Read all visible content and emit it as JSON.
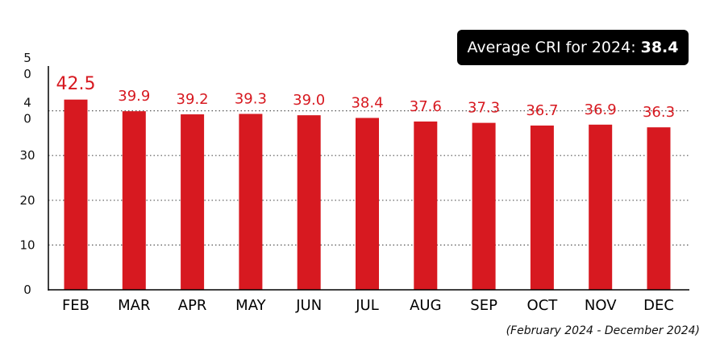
{
  "chart_data": {
    "type": "bar",
    "categories": [
      "FEB",
      "MAR",
      "APR",
      "MAY",
      "JUN",
      "JUL",
      "AUG",
      "SEP",
      "OCT",
      "NOV",
      "DEC"
    ],
    "values": [
      42.5,
      39.9,
      39.2,
      39.3,
      39.0,
      38.4,
      37.6,
      37.3,
      36.7,
      36.9,
      36.3
    ],
    "value_labels": [
      "42.5",
      "39.9",
      "39.2",
      "39.3",
      "39.0",
      "38.4",
      "37.6",
      "37.3",
      "36.7",
      "36.9",
      "36.3"
    ],
    "ylim": [
      0,
      50
    ],
    "yticks": [
      {
        "value": 0,
        "label": "0"
      },
      {
        "value": 10,
        "label": "10"
      },
      {
        "value": 20,
        "label": "20"
      },
      {
        "value": 30,
        "label": "30"
      },
      {
        "value": 40,
        "label": "4\n0"
      },
      {
        "value": 50,
        "label": "5\n0"
      }
    ],
    "gridlines": [
      10,
      20,
      30,
      40
    ],
    "grid": "dotted",
    "bar_color": "#d71920",
    "label_color": "#d71920",
    "title": "",
    "xlabel": "",
    "ylabel": ""
  },
  "badge": {
    "text": "Average CRI for 2024:",
    "value": "38.4"
  },
  "footnote": "(February 2024 - December 2024)"
}
